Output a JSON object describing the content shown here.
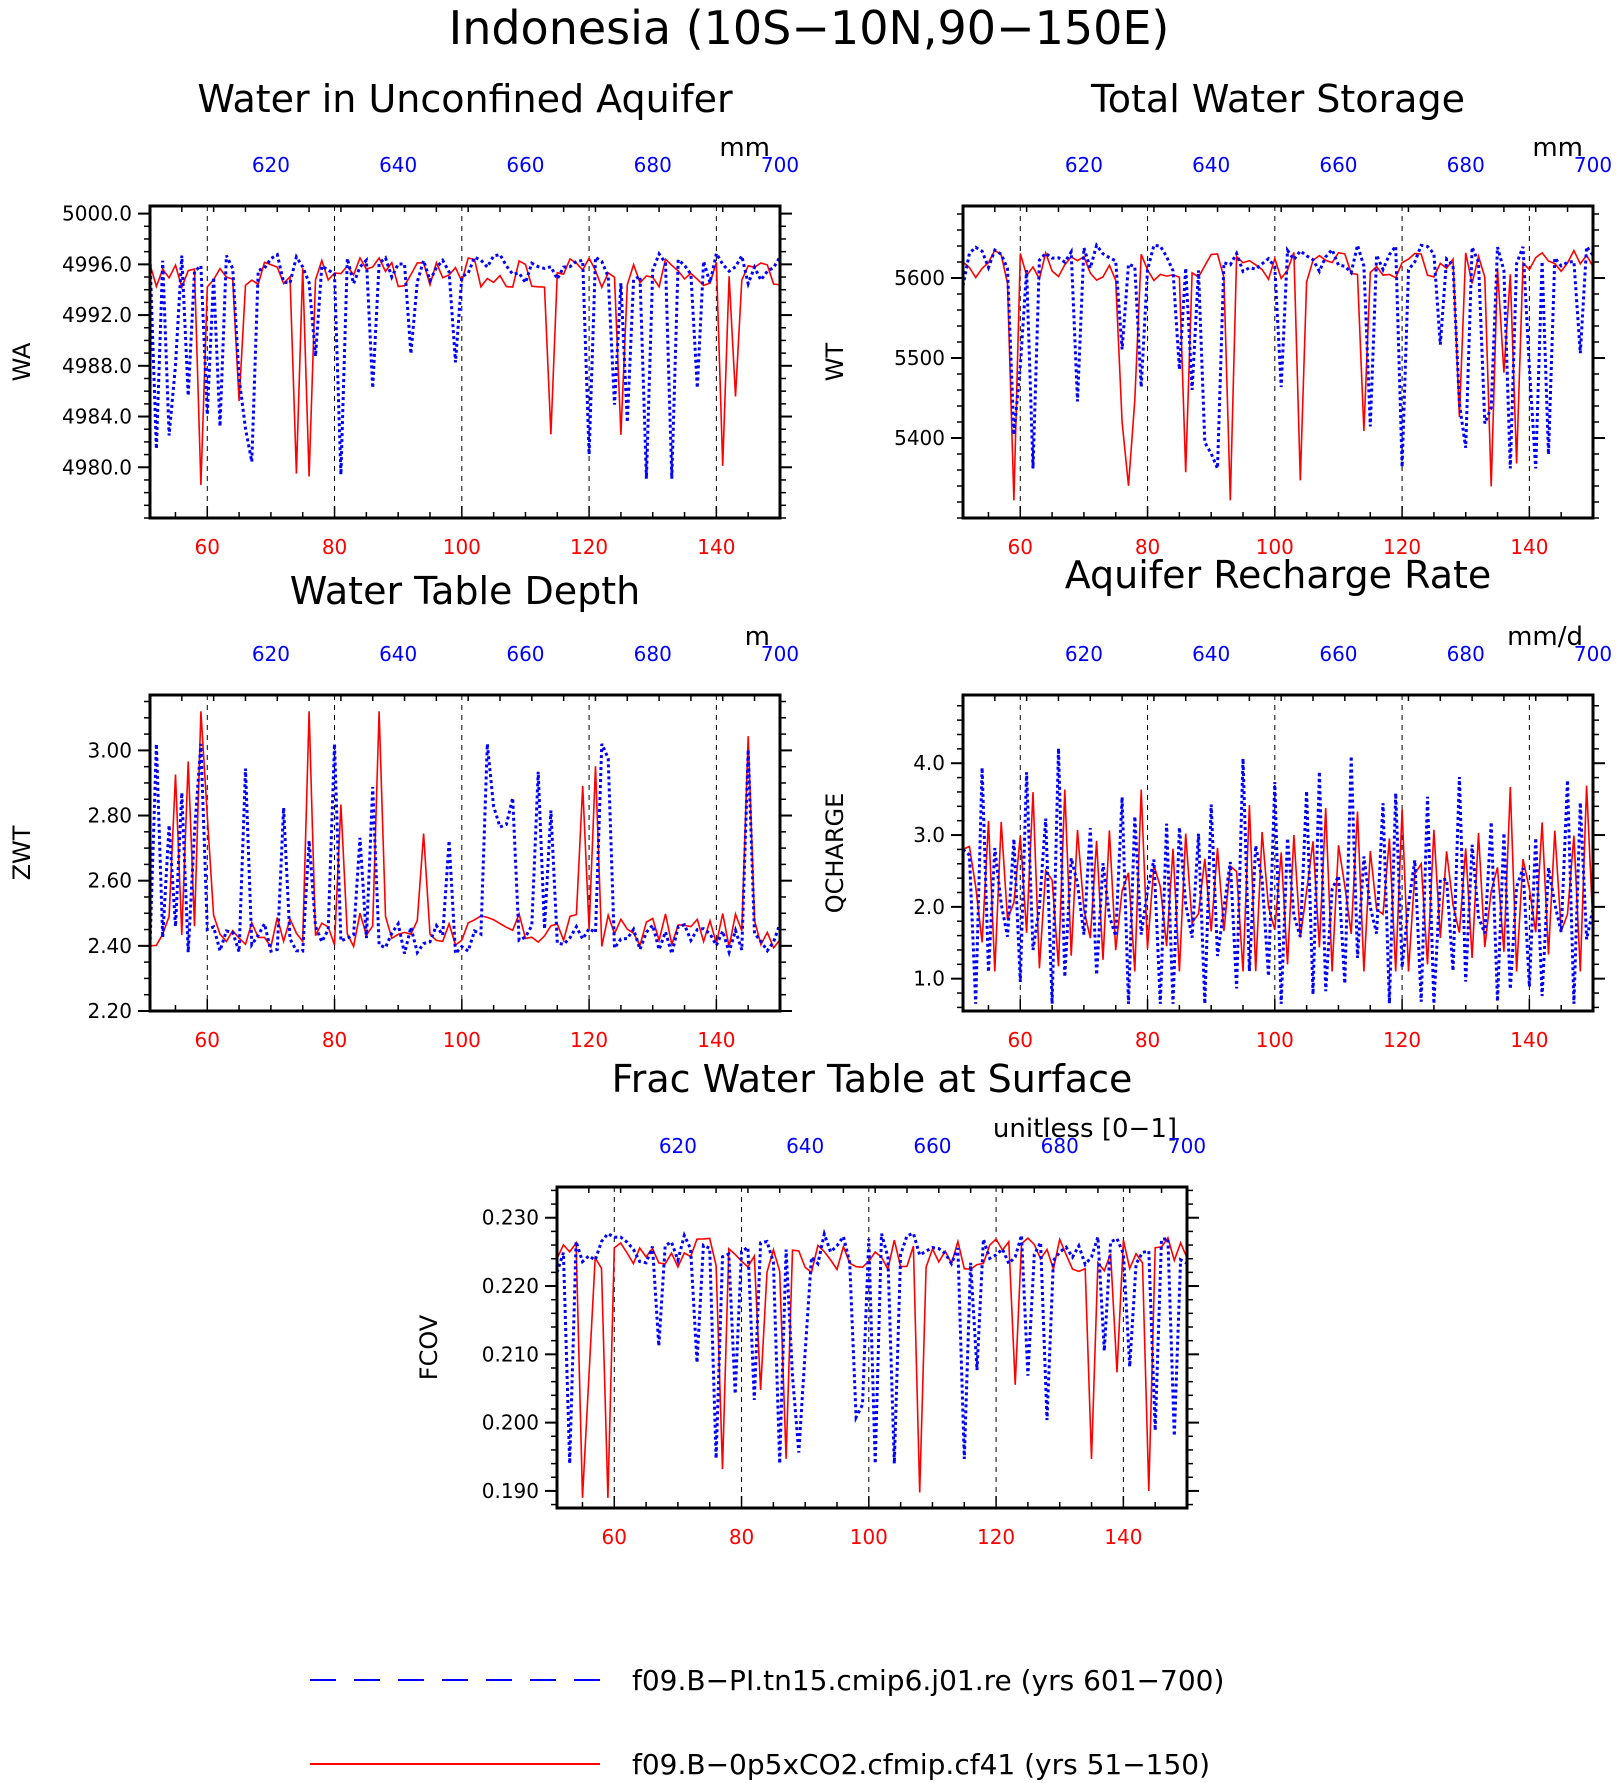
{
  "figure_title": "Indonesia (10S−10N,90−150E)",
  "colors": {
    "bottom_axis": "#ff0000",
    "top_axis": "#0000ff",
    "ctrl": "#0000ff",
    "exp": "#ff0000"
  },
  "legend": [
    {
      "label": "f09.B−PI.tn15.cmip6.j01.re (yrs 601−700)",
      "style": "dashed",
      "color": "#0000ff"
    },
    {
      "label": "f09.B−0p5xCO2.cfmip.cf41 (yrs 51−150)",
      "style": "solid",
      "color": "#ff0000"
    }
  ],
  "chart_data": [
    {
      "type": "line",
      "title": "Water in Unconfined Aquifer",
      "units": "mm",
      "ylabel": "WA",
      "xlim": [
        51,
        150
      ],
      "x2lim": [
        601,
        700
      ],
      "ylim": [
        4976.0,
        5000.6
      ],
      "xticks": [
        60,
        80,
        100,
        120,
        140
      ],
      "x2ticks": [
        620,
        640,
        660,
        680,
        700
      ],
      "yticks": [
        4980.0,
        4984.0,
        4988.0,
        4992.0,
        4996.0,
        5000.0
      ],
      "ydec": 1,
      "yminor": 1.0,
      "ctrl_range": [
        4979.1,
        4999.4
      ],
      "ctrl_start": 4996.5,
      "ctrl_spikes": 21,
      "ctrl_seed": 7,
      "exp_range": [
        4978.6,
        4999.1
      ],
      "exp_start": 4996.0,
      "exp_spikes": 7,
      "exp_seed": 3,
      "exp_minat": 59
    },
    {
      "type": "line",
      "title": "Total Water Storage",
      "units": "mm",
      "ylabel": "WT",
      "xlim": [
        51,
        150
      ],
      "x2lim": [
        601,
        700
      ],
      "ylim": [
        5300,
        5690
      ],
      "xticks": [
        60,
        80,
        100,
        120,
        140
      ],
      "x2ticks": [
        620,
        640,
        660,
        680,
        700
      ],
      "yticks": [
        5400,
        5500,
        5600
      ],
      "ydec": 0,
      "yminor": 20,
      "ctrl_range": [
        5362,
        5682
      ],
      "ctrl_start": 5590,
      "ctrl_spikes": 26,
      "ctrl_seed": 11,
      "exp_range": [
        5322,
        5680
      ],
      "exp_start": 5620,
      "exp_spikes": 12,
      "exp_seed": 5,
      "exp_minat": 59
    },
    {
      "type": "line",
      "title": "Water Table Depth",
      "units": "m",
      "ylabel": "ZWT",
      "xlim": [
        51,
        150
      ],
      "x2lim": [
        601,
        700
      ],
      "ylim": [
        2.2,
        3.17
      ],
      "xticks": [
        60,
        80,
        100,
        120,
        140
      ],
      "x2ticks": [
        620,
        640,
        660,
        680,
        700
      ],
      "yticks": [
        2.2,
        2.4,
        2.6,
        2.8,
        3.0
      ],
      "ydec": 2,
      "yminor": 0.05,
      "ctrl_range": [
        2.23,
        3.02
      ],
      "ctrl_start": 2.4,
      "ctrl_spikes": 22,
      "ctrl_seed": 13,
      "ctrl_up": true,
      "exp_range": [
        2.23,
        3.12
      ],
      "exp_start": 2.4,
      "exp_spikes": 10,
      "exp_seed": 17,
      "exp_up": true,
      "exp_maxat": 59
    },
    {
      "type": "line",
      "title": "Aquifer Recharge Rate",
      "units": "mm/d",
      "ylabel": "QCHARGE",
      "xlim": [
        51,
        150
      ],
      "x2lim": [
        601,
        700
      ],
      "ylim": [
        0.55,
        4.95
      ],
      "xticks": [
        60,
        80,
        100,
        120,
        140
      ],
      "x2ticks": [
        620,
        640,
        660,
        680,
        700
      ],
      "yticks": [
        1.0,
        2.0,
        3.0,
        4.0
      ],
      "ydec": 1,
      "yminor": 0.2,
      "ctrl_range": [
        0.65,
        4.75
      ],
      "ctrl_start": 2.8,
      "ctrl_spikes": 0,
      "ctrl_seed": 19,
      "ctrl_osc": true,
      "exp_range": [
        1.1,
        4.2
      ],
      "exp_start": 2.8,
      "exp_spikes": 0,
      "exp_seed": 23,
      "exp_osc": true
    },
    {
      "type": "line",
      "title": "Frac Water Table at Surface",
      "units": "unitless [0−1]",
      "ylabel": "FCOV",
      "xlim": [
        51,
        150
      ],
      "x2lim": [
        601,
        700
      ],
      "ylim": [
        0.1875,
        0.2345
      ],
      "xticks": [
        60,
        80,
        100,
        120,
        140
      ],
      "x2ticks": [
        620,
        640,
        660,
        680,
        700
      ],
      "yticks": [
        0.19,
        0.2,
        0.21,
        0.22,
        0.23
      ],
      "ydec": 3,
      "yminor": 0.002,
      "ctrl_range": [
        0.194,
        0.2325
      ],
      "ctrl_start": 0.222,
      "ctrl_spikes": 24,
      "ctrl_seed": 29,
      "exp_range": [
        0.189,
        0.2325
      ],
      "exp_start": 0.224,
      "exp_spikes": 10,
      "exp_seed": 31,
      "exp_minat": 59
    }
  ]
}
